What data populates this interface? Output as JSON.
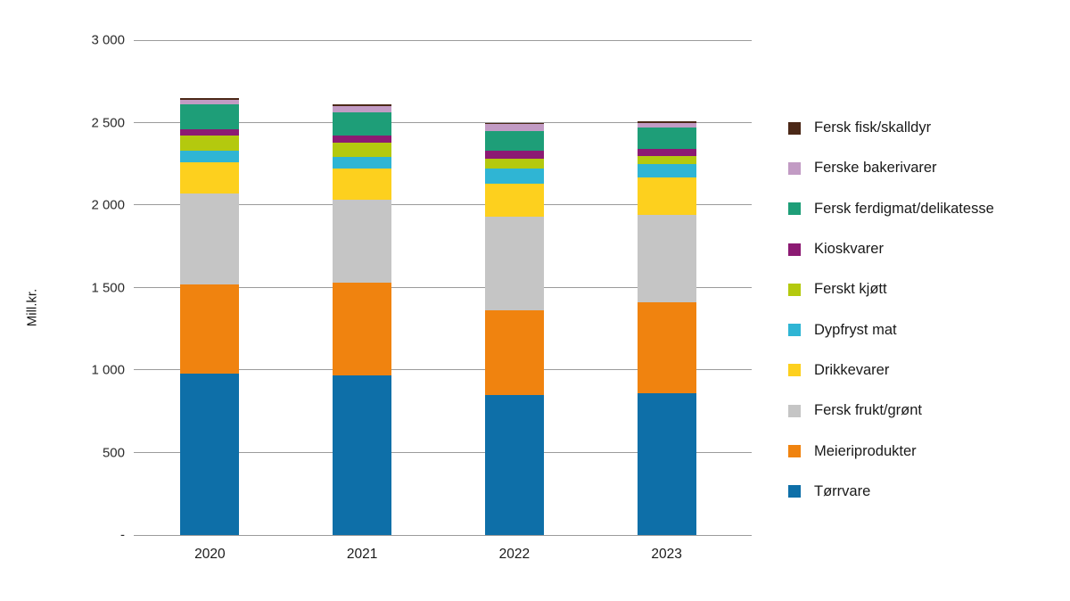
{
  "chart_data": {
    "type": "bar",
    "stacked": true,
    "title": "",
    "xlabel": "",
    "ylabel": "Mill.kr.",
    "ylim": [
      0,
      3000
    ],
    "ytick_step": 500,
    "yticks_top_to_bottom": [
      "3 000",
      "2 500",
      "2 000",
      "1 500",
      "1 000",
      "500",
      "-"
    ],
    "grid": true,
    "legend_position": "right",
    "legend_order": "reverse-of-stack",
    "categories": [
      "2020",
      "2021",
      "2022",
      "2023"
    ],
    "series": [
      {
        "name": "Tørrvare",
        "color": "#0e6fa8",
        "values": [
          980,
          970,
          850,
          860
        ]
      },
      {
        "name": "Meieriprodukter",
        "color": "#f0830f",
        "values": [
          540,
          560,
          510,
          550
        ]
      },
      {
        "name": "Fersk frukt/grønt",
        "color": "#c5c5c5",
        "values": [
          550,
          500,
          570,
          530
        ]
      },
      {
        "name": "Drikkevarer",
        "color": "#fdd01e",
        "values": [
          190,
          190,
          200,
          230
        ]
      },
      {
        "name": "Dypfryst mat",
        "color": "#2fb5d4",
        "values": [
          70,
          70,
          90,
          80
        ]
      },
      {
        "name": "Ferskt kjøtt",
        "color": "#b4c90e",
        "values": [
          90,
          90,
          60,
          50
        ]
      },
      {
        "name": "Kioskvarer",
        "color": "#8c1a73",
        "values": [
          40,
          40,
          50,
          40
        ]
      },
      {
        "name": "Fersk ferdigmat/delikatesse",
        "color": "#1e9e78",
        "values": [
          150,
          140,
          120,
          130
        ]
      },
      {
        "name": "Ferske bakerivarer",
        "color": "#c29bc4",
        "values": [
          30,
          40,
          40,
          30
        ]
      },
      {
        "name": "Fersk fisk/skalldyr",
        "color": "#4b2817",
        "values": [
          10,
          10,
          10,
          10
        ]
      }
    ],
    "totals": [
      2650,
      2610,
      2500,
      2510
    ],
    "colors": {
      "gridline": "#9b9b9b",
      "text": "#1a1a1a",
      "background": "#ffffff"
    }
  }
}
